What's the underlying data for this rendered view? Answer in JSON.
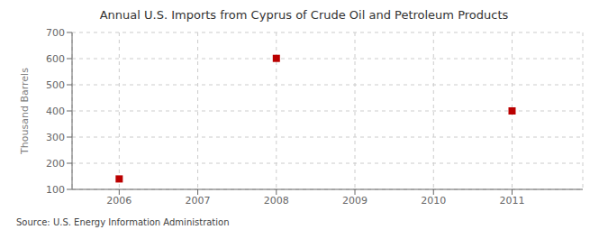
{
  "chart_data": {
    "type": "scatter",
    "title": "Annual U.S. Imports from Cyprus of Crude Oil and Petroleum Products",
    "y_label": "Thousand Barrels",
    "annotations": [
      "Source: U.S. Energy Information Administration"
    ],
    "x": [
      2006,
      2008,
      2011
    ],
    "values": [
      140,
      601,
      400
    ],
    "color": "#bb0000",
    "marker": "square",
    "xlim": [
      2005.4,
      2011.9
    ],
    "ylim": [
      100,
      700
    ],
    "xticks": [
      2006,
      2007,
      2008,
      2009,
      2010,
      2011
    ],
    "yticks": [
      100,
      200,
      300,
      400,
      500,
      600,
      700
    ],
    "grid": true
  }
}
